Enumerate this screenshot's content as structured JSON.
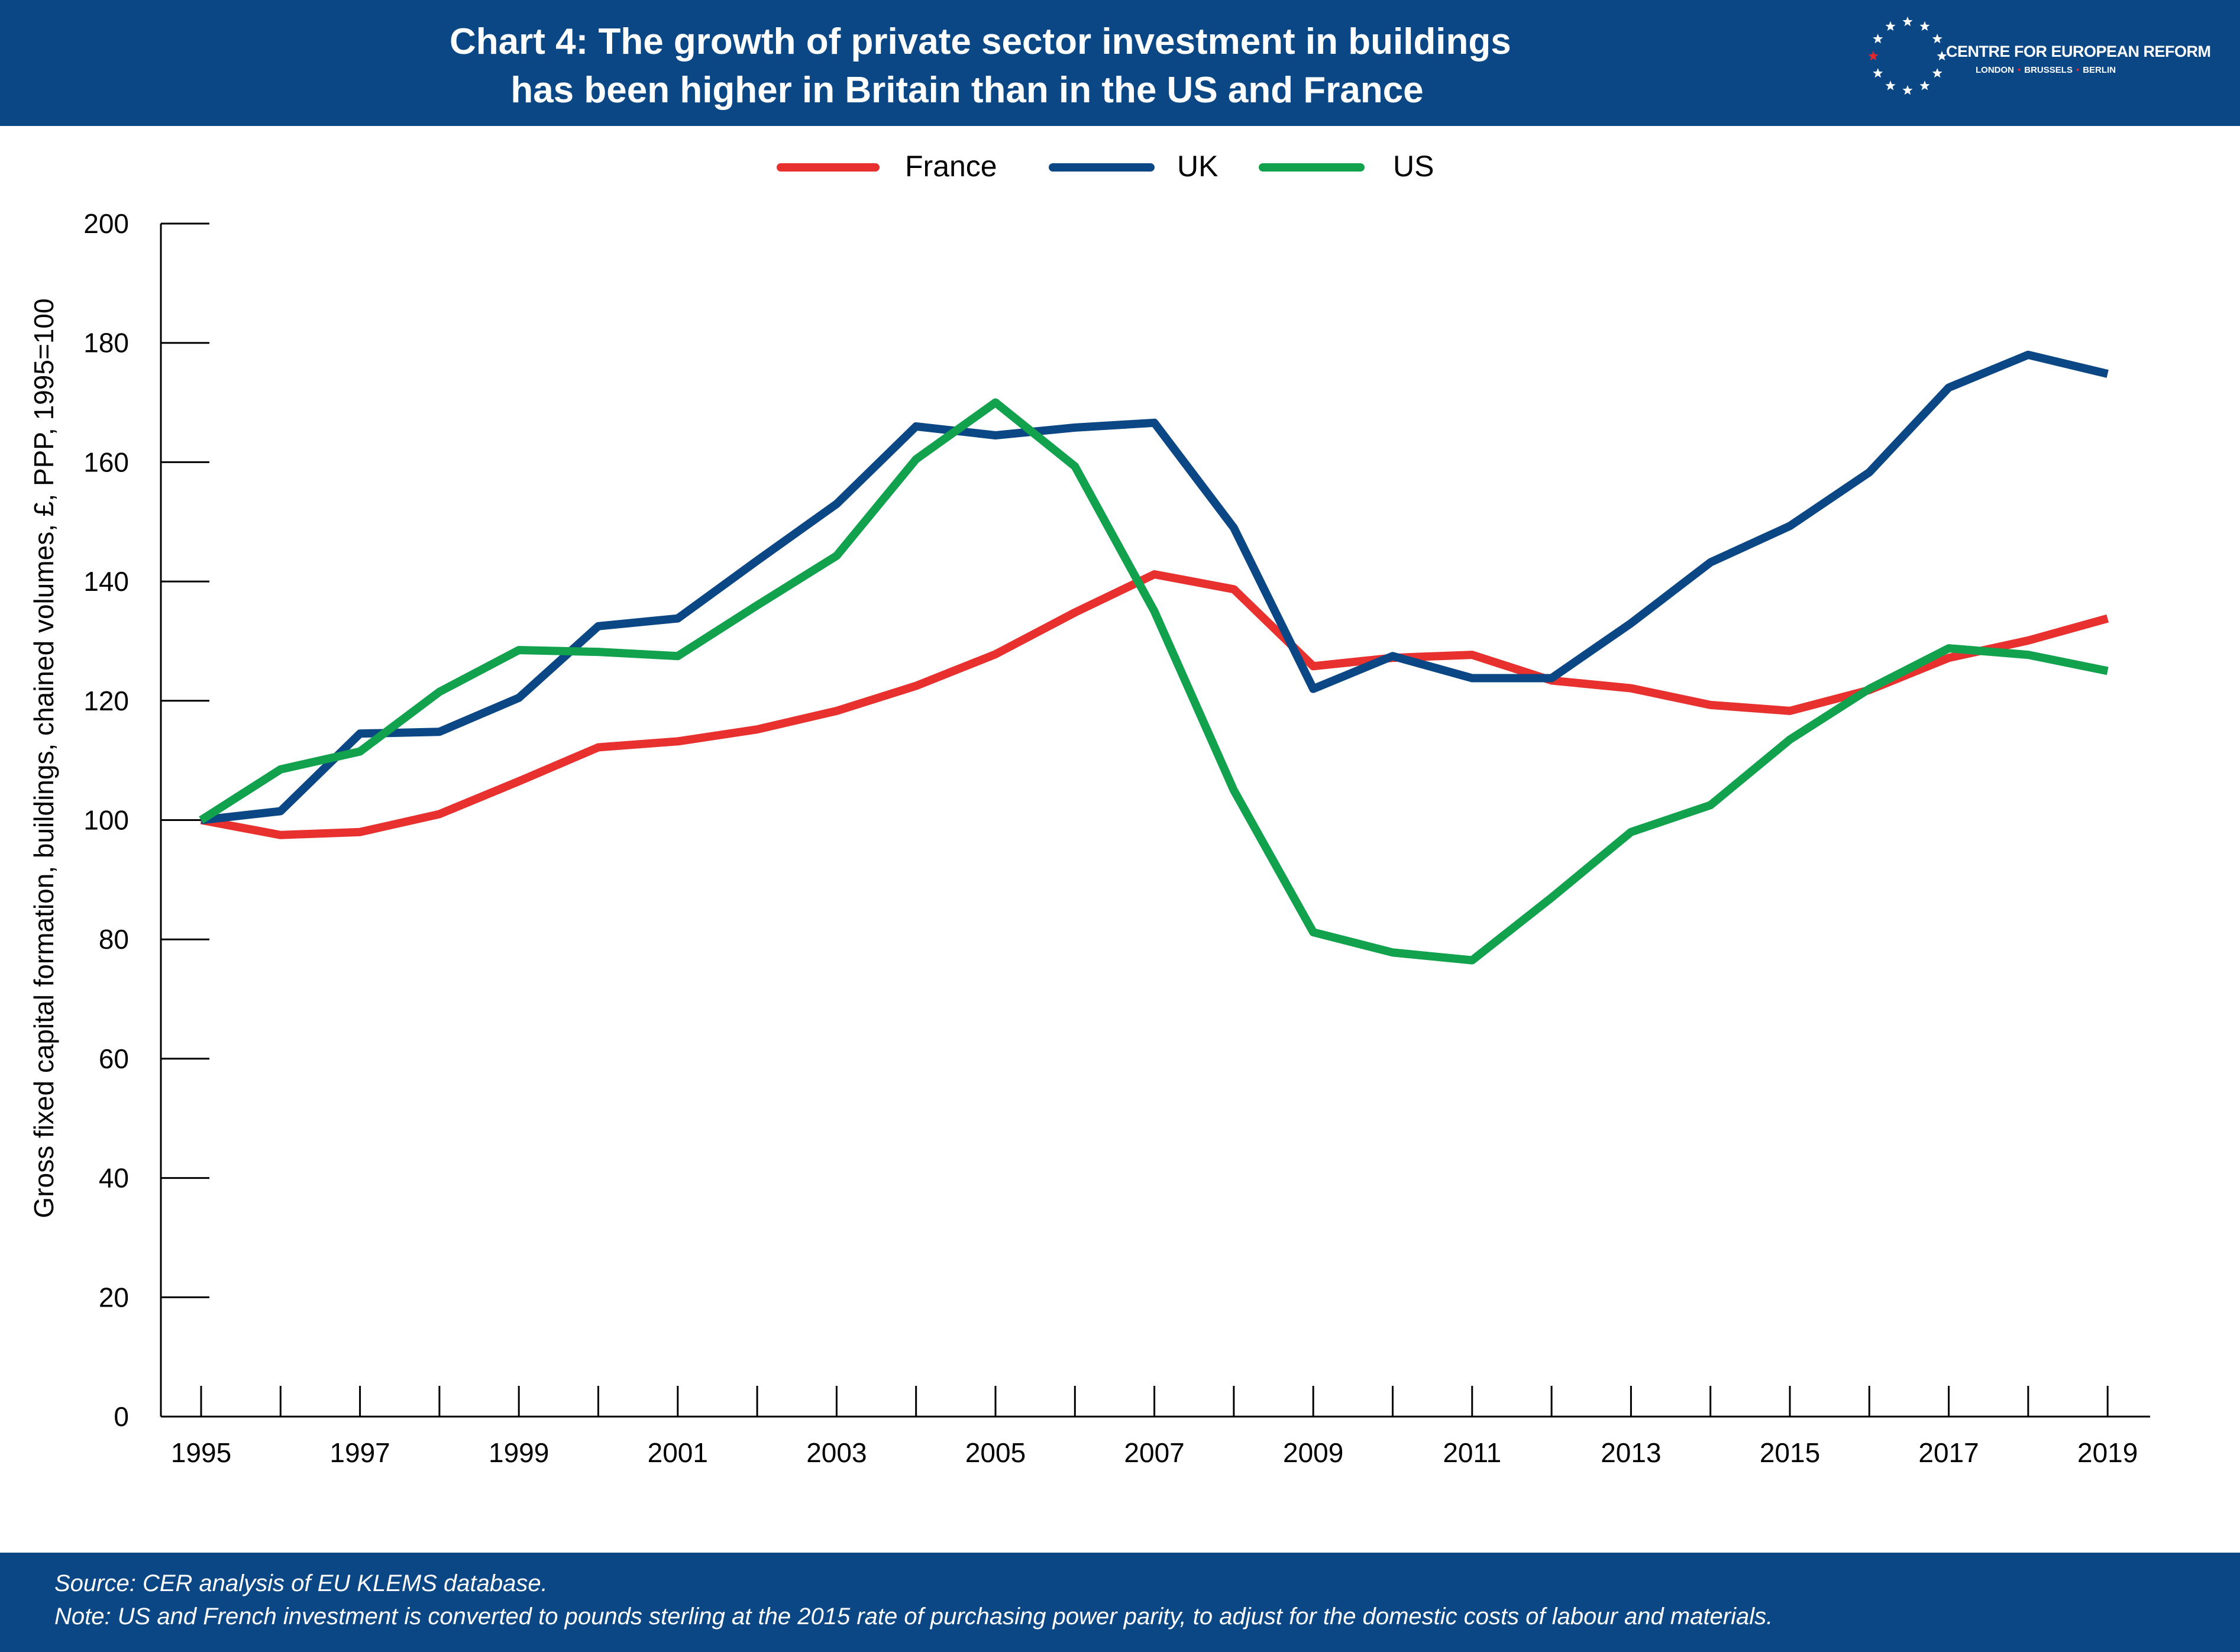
{
  "header": {
    "title_line1": "Chart 4: The growth of private sector investment in buildings",
    "title_line2": "has been higher in Britain than in the US and France",
    "background_color": "#0b4785"
  },
  "logo": {
    "name": "CENTRE FOR EUROPEAN REFORM",
    "city1": "LONDON",
    "city2": "BRUSSELS",
    "city3": "BERLIN",
    "star_icon": "star-icon"
  },
  "chart_data": {
    "type": "line",
    "title": "Chart 4: The growth of private sector investment in buildings has been higher in Britain than in the US and France",
    "ylabel": "Gross fixed capital formation, buildings, chained volumes, £, PPP, 1995=100",
    "xlabel": "",
    "ylim": [
      0,
      200
    ],
    "y_ticks": [
      0,
      20,
      40,
      60,
      80,
      100,
      120,
      140,
      160,
      180,
      200
    ],
    "x": [
      1995,
      1996,
      1997,
      1998,
      1999,
      2000,
      2001,
      2002,
      2003,
      2004,
      2005,
      2006,
      2007,
      2008,
      2009,
      2010,
      2011,
      2012,
      2013,
      2014,
      2015,
      2016,
      2017,
      2018,
      2019
    ],
    "x_tick_labels": [
      "1995",
      "1997",
      "1999",
      "2001",
      "2003",
      "2005",
      "2007",
      "2009",
      "2011",
      "2013",
      "2015",
      "2017",
      "2019"
    ],
    "legend_position": "top-center",
    "grid": false,
    "series": [
      {
        "name": "France",
        "color": "#e8312f",
        "values": [
          100,
          97.5,
          98,
          101,
          106.5,
          112.2,
          113.2,
          115.2,
          118.3,
          122.5,
          127.8,
          134.8,
          141.2,
          138.7,
          125.8,
          127.2,
          127.7,
          123.4,
          122.1,
          119.3,
          118.3,
          121.8,
          127.2,
          130.1,
          133.8
        ]
      },
      {
        "name": "UK",
        "color": "#0b4785",
        "values": [
          100,
          101.5,
          114.5,
          114.8,
          120.5,
          132.5,
          133.8,
          143.5,
          153,
          166,
          164.5,
          165.8,
          166.6,
          149,
          122,
          127.5,
          123.8,
          123.8,
          133,
          143.2,
          149.3,
          158.3,
          172.5,
          178,
          174.8
        ]
      },
      {
        "name": "US",
        "color": "#12a14d",
        "values": [
          100,
          108.5,
          111.5,
          121.5,
          128.5,
          128.2,
          127.5,
          136,
          144.3,
          160.5,
          170,
          159.3,
          135,
          105,
          81.2,
          77.8,
          76.5,
          87,
          98,
          102.5,
          113.5,
          122,
          128.8,
          127.7,
          125
        ]
      }
    ]
  },
  "footer": {
    "source": "Source: CER analysis of EU KLEMS database.",
    "note": "Note: US and French investment is converted to pounds sterling at the 2015 rate of purchasing power parity, to adjust for the domestic costs of labour and materials."
  }
}
